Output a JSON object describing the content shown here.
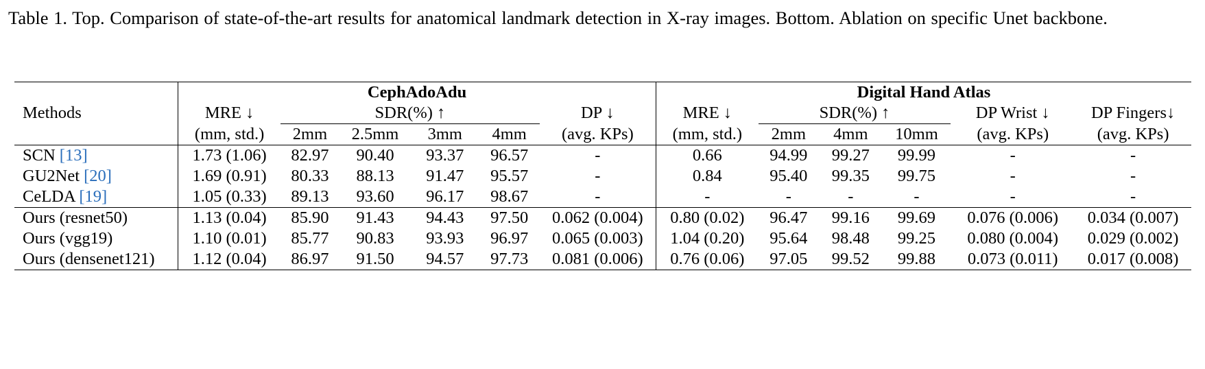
{
  "caption": "Table 1. Top. Comparison of state-of-the-art results for anatomical landmark detection in X-ray images. Bottom. Ablation on specific Unet backbone.",
  "header": {
    "methods": "Methods",
    "group1": "CephAdoAdu",
    "group2": "Digital Hand Atlas",
    "mre": "MRE ↓",
    "mre_unit": "(mm, std.)",
    "sdr": "SDR(%) ↑",
    "dp": "DP ↓",
    "dp_unit": "(avg. KPs)",
    "dp_wrist": "DP Wrist ↓",
    "dp_fingers": "DP Fingers↓",
    "ceph_sdr_cols": [
      "2mm",
      "2.5mm",
      "3mm",
      "4mm"
    ],
    "hand_sdr_cols": [
      "2mm",
      "4mm",
      "10mm"
    ]
  },
  "rows": [
    {
      "method": "SCN",
      "ref": "[13]",
      "cells": [
        "1.73 (1.06)",
        "82.97",
        "90.40",
        "93.37",
        "96.57",
        "-",
        "0.66",
        "94.99",
        "99.27",
        "99.99",
        "-",
        "-"
      ]
    },
    {
      "method": "GU2Net",
      "ref": "[20]",
      "cells": [
        "1.69 (0.91)",
        "80.33",
        "88.13",
        "91.47",
        "95.57",
        "-",
        "0.84",
        "95.40",
        "99.35",
        "99.75",
        "-",
        "-"
      ]
    },
    {
      "method": "CeLDA",
      "ref": "[19]",
      "cells": [
        "1.05 (0.33)",
        "89.13",
        "93.60",
        "96.17",
        "98.67",
        "-",
        "-",
        "-",
        "-",
        "-",
        "-",
        "-"
      ]
    },
    {
      "method": "Ours (resnet50)",
      "ref": "",
      "cells": [
        "1.13 (0.04)",
        "85.90",
        "91.43",
        "94.43",
        "97.50",
        "0.062 (0.004)",
        "0.80 (0.02)",
        "96.47",
        "99.16",
        "99.69",
        "0.076 (0.006)",
        "0.034 (0.007)"
      ]
    },
    {
      "method": "Ours (vgg19)",
      "ref": "",
      "cells": [
        "1.10 (0.01)",
        "85.77",
        "90.83",
        "93.93",
        "96.97",
        "0.065 (0.003)",
        "1.04 (0.20)",
        "95.64",
        "98.48",
        "99.25",
        "0.080 (0.004)",
        "0.029 (0.002)"
      ]
    },
    {
      "method": "Ours (densenet121)",
      "ref": "",
      "cells": [
        "1.12 (0.04)",
        "86.97",
        "91.50",
        "94.57",
        "97.73",
        "0.081 (0.006)",
        "0.76 (0.06)",
        "97.05",
        "99.52",
        "99.88",
        "0.073 (0.011)",
        "0.017 (0.008)"
      ]
    }
  ]
}
